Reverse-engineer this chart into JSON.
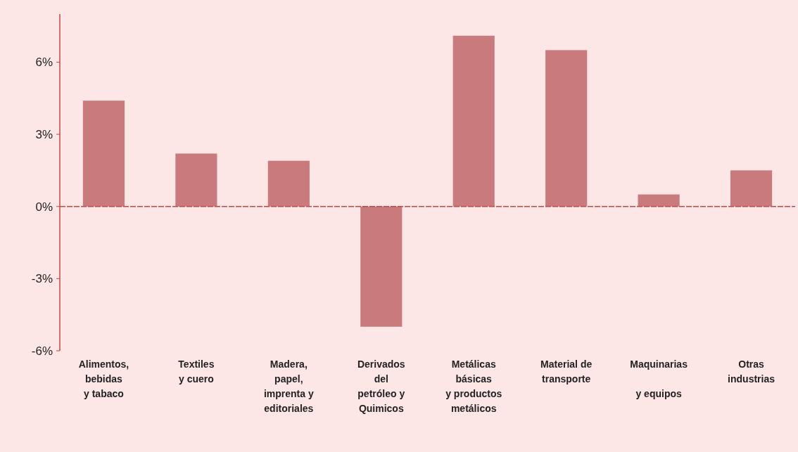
{
  "chart_data": {
    "type": "bar",
    "categories": [
      "Alimentos,\nbebidas\ny tabaco",
      "Textiles\ny cuero",
      "Madera,\npapel,\nimprenta y\neditoriales",
      "Derivados\ndel\npetróleo y\nQuimicos",
      "Metálicas\nbásicas\ny productos\nmetálicos",
      "Material de\ntransporte",
      "Maquinarias\n\ny equipos",
      "Otras\nindustrias"
    ],
    "values": [
      4.4,
      2.2,
      1.9,
      -5.0,
      7.1,
      6.5,
      0.5,
      1.5
    ],
    "color": "#c97a7c",
    "ylim": [
      -6,
      8
    ],
    "yticks": [
      {
        "value": -6,
        "label": "-6%"
      },
      {
        "value": -3,
        "label": "-3%"
      },
      {
        "value": 0,
        "label": "0%"
      },
      {
        "value": 3,
        "label": "3%"
      },
      {
        "value": 6,
        "label": "6%"
      }
    ],
    "grid": false,
    "ref_lines": [
      {
        "axis": "y",
        "value": 0,
        "color": "#c04848",
        "line_style": "dashed"
      }
    ]
  }
}
